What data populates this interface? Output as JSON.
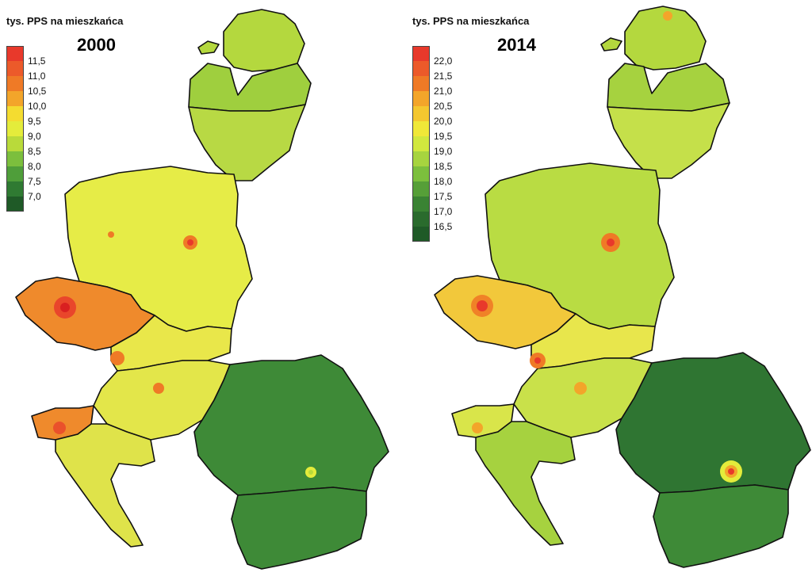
{
  "maps": [
    {
      "legend_title": "tys. PPS na mieszkańca",
      "year": "2000",
      "legend": [
        {
          "label": "11,5",
          "color": "#e8392b"
        },
        {
          "label": "11,0",
          "color": "#ec5a2a"
        },
        {
          "label": "10,5",
          "color": "#ef7a26"
        },
        {
          "label": "10,0",
          "color": "#f3a52a"
        },
        {
          "label": "9,5",
          "color": "#f4dc30"
        },
        {
          "label": "9,0",
          "color": "#e4ec3b"
        },
        {
          "label": "8,5",
          "color": "#b9da3a"
        },
        {
          "label": "8,0",
          "color": "#7cbf3d"
        },
        {
          "label": "7,5",
          "color": "#4f9e3a"
        },
        {
          "label": "7,0",
          "color": "#2f7a32"
        },
        {
          "label": "",
          "color": "#1f5a27"
        }
      ]
    },
    {
      "legend_title": "tys. PPS na mieszkańca",
      "year": "2014",
      "legend": [
        {
          "label": "22,0",
          "color": "#e8392b"
        },
        {
          "label": "21,5",
          "color": "#ec5a2a"
        },
        {
          "label": "21,0",
          "color": "#ef7a26"
        },
        {
          "label": "20,5",
          "color": "#f3a52a"
        },
        {
          "label": "20,0",
          "color": "#f4c72f"
        },
        {
          "label": "19,5",
          "color": "#f0e838"
        },
        {
          "label": "19,0",
          "color": "#d1e83e"
        },
        {
          "label": "18,5",
          "color": "#a7d43f"
        },
        {
          "label": "18,0",
          "color": "#7cbf3d"
        },
        {
          "label": "17,5",
          "color": "#569f38"
        },
        {
          "label": "17,0",
          "color": "#3a8333"
        },
        {
          "label": "16,5",
          "color": "#2a6b2d"
        },
        {
          "label": "",
          "color": "#1f5a27"
        }
      ]
    }
  ],
  "regions": {
    "map_2000": {
      "estonia": "#b4d83e",
      "latvia": "#9fcf3e",
      "lithuania": "#b8d944",
      "poland": "#e6ec47",
      "czechia": "#ef8a2c",
      "slovakia": "#e9e74a",
      "hungary": "#e3e64a",
      "slovenia": "#ef8a2c",
      "croatia": "#dfe34a",
      "romania": "#3e8a37",
      "bulgaria": "#3e8a37"
    },
    "map_2014": {
      "estonia": "#b4d83e",
      "latvia": "#a6d23f",
      "lithuania": "#c5e04a",
      "poland": "#b9dc43",
      "czechia": "#f2c83b",
      "slovakia": "#e8e64c",
      "hungary": "#c9e14a",
      "slovenia": "#d9e54a",
      "croatia": "#a6d23f",
      "romania": "#2f7532",
      "bulgaria": "#3e8a37"
    }
  }
}
